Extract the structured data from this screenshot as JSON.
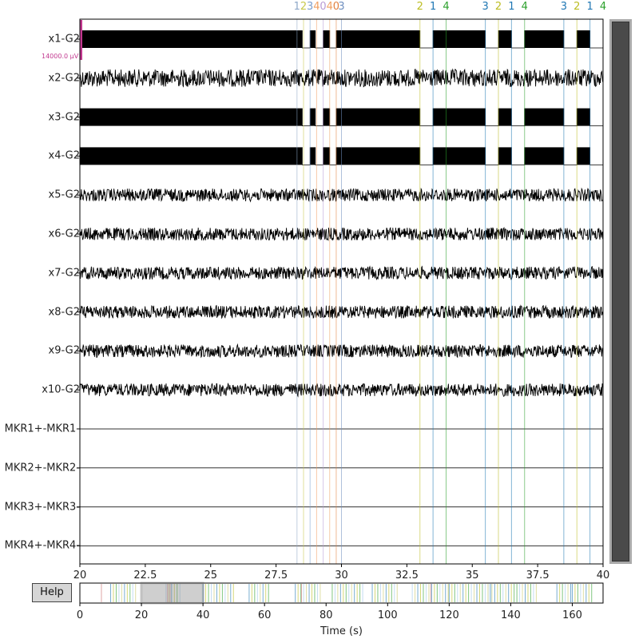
{
  "channels": [
    "x1-G2",
    "x2-G2",
    "x3-G2",
    "x4-G2",
    "x5-G2",
    "x6-G2",
    "x7-G2",
    "x8-G2",
    "x9-G2",
    "x10-G2",
    "MKR1+-MKR1-",
    "MKR2+-MKR2-",
    "MKR3+-MKR3-",
    "MKR4+-MKR4-"
  ],
  "scale_label": "14000.0 µV",
  "help_label": "Help",
  "xlabel": "Time (s)",
  "main_axis": {
    "range": [
      20,
      40
    ],
    "ticks": [
      "20",
      "22.5",
      "25",
      "27.5",
      "30",
      "32.5",
      "35",
      "37.5",
      "40"
    ]
  },
  "overview_axis": {
    "range": [
      0,
      170
    ],
    "ticks": [
      "0",
      "20",
      "40",
      "60",
      "80",
      "100",
      "120",
      "140",
      "160"
    ],
    "view_window": [
      20,
      40
    ]
  },
  "event_colors": {
    "1": "#1f77b4",
    "2": "#bcbd22",
    "3": "#1f77b4",
    "4": "#2ca02c"
  },
  "events": [
    {
      "t": 28.3,
      "label": "1",
      "color": "#8fa8c8"
    },
    {
      "t": 28.55,
      "label": "2",
      "color": "#c7c94a"
    },
    {
      "t": 28.8,
      "label": "3",
      "color": "#7a9fcf"
    },
    {
      "t": 29.05,
      "label": "4",
      "color": "#f0a060"
    },
    {
      "t": 29.3,
      "label": "0",
      "color": "#b89bd6"
    },
    {
      "t": 29.55,
      "label": "4",
      "color": "#f0a060"
    },
    {
      "t": 29.8,
      "label": "0",
      "color": "#e08040"
    },
    {
      "t": 30.0,
      "label": "3",
      "color": "#6f8fbf"
    },
    {
      "t": 33.0,
      "label": "2",
      "color": "#bcbd22"
    },
    {
      "t": 33.5,
      "label": "1",
      "color": "#1f77b4"
    },
    {
      "t": 34.0,
      "label": "4",
      "color": "#2ca02c"
    },
    {
      "t": 35.5,
      "label": "3",
      "color": "#1f77b4"
    },
    {
      "t": 36.0,
      "label": "2",
      "color": "#bcbd22"
    },
    {
      "t": 36.5,
      "label": "1",
      "color": "#1f77b4"
    },
    {
      "t": 37.0,
      "label": "4",
      "color": "#2ca02c"
    },
    {
      "t": 38.5,
      "label": "3",
      "color": "#1f77b4"
    },
    {
      "t": 39.0,
      "label": "2",
      "color": "#bcbd22"
    },
    {
      "t": 39.5,
      "label": "1",
      "color": "#1f77b4"
    },
    {
      "t": 40.0,
      "label": "4",
      "color": "#2ca02c"
    }
  ]
}
